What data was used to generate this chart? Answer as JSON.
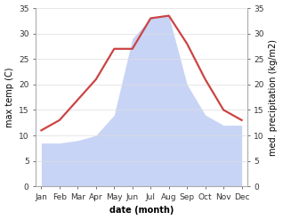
{
  "months": [
    "Jan",
    "Feb",
    "Mar",
    "Apr",
    "May",
    "Jun",
    "Jul",
    "Aug",
    "Sep",
    "Oct",
    "Nov",
    "Dec"
  ],
  "max_temp": [
    11,
    13,
    17,
    21,
    27,
    27,
    33,
    33.5,
    28,
    21,
    15,
    13
  ],
  "precipitation": [
    8.5,
    8.5,
    9,
    10,
    14,
    29,
    33,
    33.5,
    20,
    14,
    12,
    12
  ],
  "temp_color": "#cc4444",
  "precip_fill_color": "#c8d4f5",
  "ylim": [
    0,
    35
  ],
  "yticks": [
    0,
    5,
    10,
    15,
    20,
    25,
    30,
    35
  ],
  "xlabel": "date (month)",
  "ylabel_left": "max temp (C)",
  "ylabel_right": "med. precipitation (kg/m2)",
  "background_color": "#ffffff",
  "line_width": 1.6,
  "label_fontsize": 7,
  "tick_fontsize": 6.5
}
